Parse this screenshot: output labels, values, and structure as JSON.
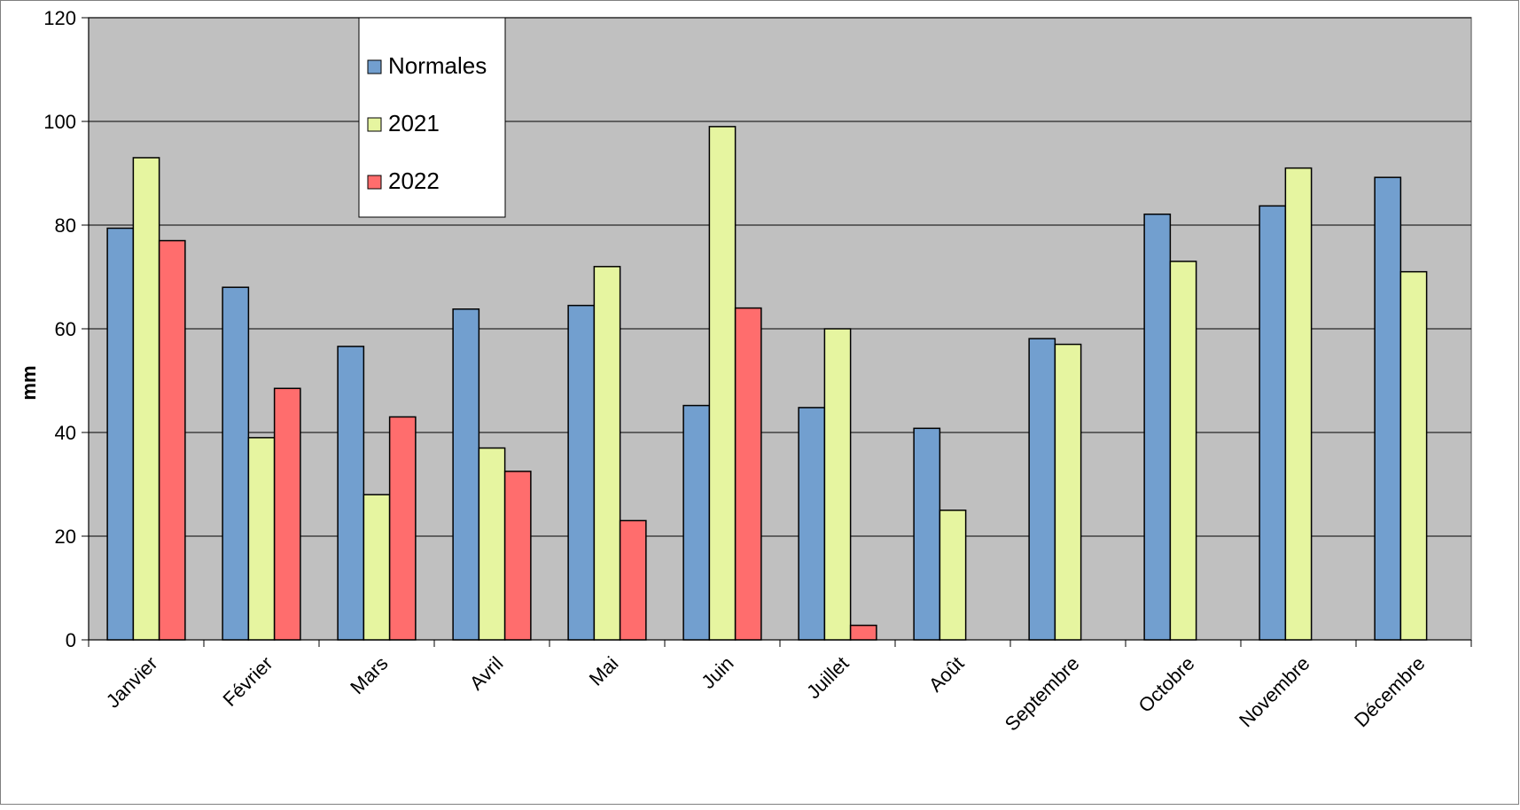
{
  "chart_data": {
    "type": "bar",
    "title": "",
    "xlabel": "",
    "ylabel": "mm",
    "ylim": [
      0,
      120
    ],
    "yticks": [
      0,
      20,
      40,
      60,
      80,
      100,
      120
    ],
    "grid": true,
    "legend_position": "top-left",
    "categories": [
      "Janvier",
      "Février",
      "Mars",
      "Avril",
      "Mai",
      "Juin",
      "Juillet",
      "Août",
      "Septembre",
      "Octobre",
      "Novembre",
      "Décembre"
    ],
    "series": [
      {
        "name": "Normales",
        "color": "#729fcf",
        "values": [
          79.4,
          68,
          56.6,
          63.8,
          64.5,
          45.2,
          44.8,
          40.8,
          58.1,
          82.1,
          83.7,
          89.2
        ]
      },
      {
        "name": "2021",
        "color": "#e6f5a0",
        "values": [
          93,
          39,
          28,
          37,
          72,
          99,
          60,
          25,
          57,
          73,
          91,
          71
        ]
      },
      {
        "name": "2022",
        "color": "#ff6d6d",
        "values": [
          77,
          48.5,
          43,
          32.5,
          23,
          64,
          2.8,
          null,
          null,
          null,
          null,
          null
        ]
      }
    ],
    "colors": {
      "plot_background": "#c0c0c0",
      "grid": "#000000"
    }
  }
}
